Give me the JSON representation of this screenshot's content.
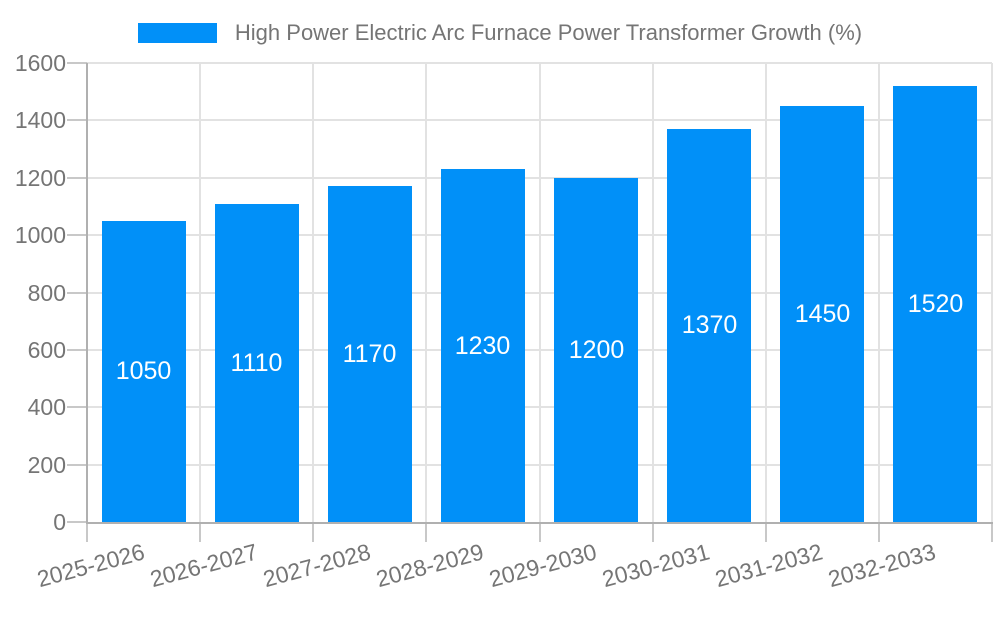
{
  "chart_data": {
    "type": "bar",
    "title": "High Power Electric Arc Furnace Power Transformer Growth (%)",
    "xlabel": "",
    "ylabel": "",
    "categories": [
      "2025-2026",
      "2026-2027",
      "2027-2028",
      "2028-2029",
      "2029-2030",
      "2030-2031",
      "2031-2032",
      "2032-2033"
    ],
    "values": [
      1050,
      1110,
      1170,
      1230,
      1200,
      1370,
      1450,
      1520
    ],
    "bar_value_labels": [
      "1050",
      "1110",
      "1170",
      "1230",
      "1200",
      "1370",
      "1450",
      "1520"
    ],
    "ylim": [
      0,
      1600
    ],
    "yticks": [
      0,
      200,
      400,
      600,
      800,
      1000,
      1200,
      1400,
      1600
    ],
    "ytick_labels": [
      "0",
      "200",
      "400",
      "600",
      "800",
      "1000",
      "1200",
      "1400",
      "1600"
    ],
    "grid": "both",
    "legend_position": "top",
    "x_label_rotation_deg": -15,
    "colors": {
      "bar": "#0190f8",
      "bar_value_text": "#ffffff",
      "axis_text": "#757575",
      "legend_text": "#757575",
      "gridline": "#e2e2e2",
      "tick": "#c8c8c8",
      "axis_line": "#b0b0b0",
      "background": "#ffffff"
    }
  }
}
